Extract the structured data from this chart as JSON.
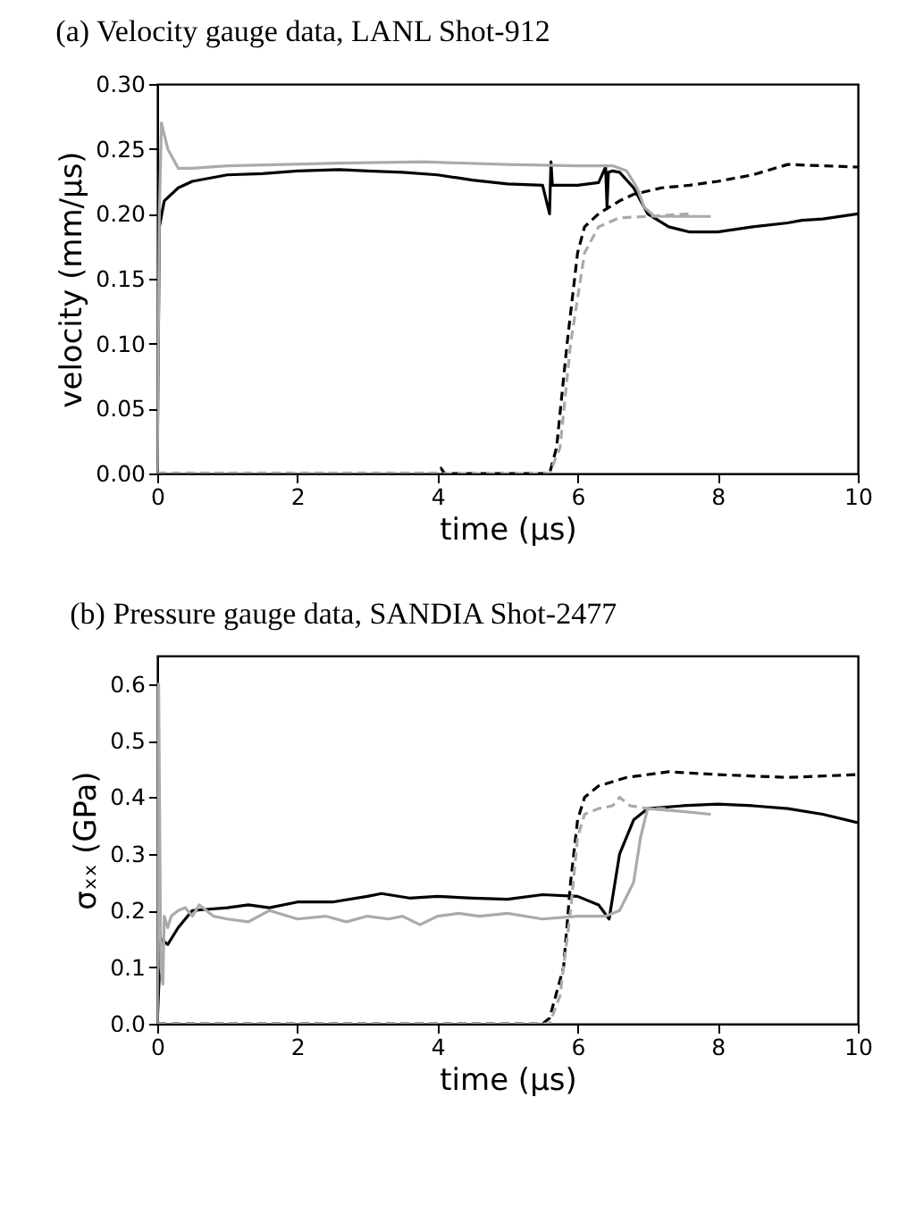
{
  "chart_data": [
    {
      "type": "line",
      "title": "(a) Velocity gauge data, LANL Shot-912",
      "xlabel": "time (μs)",
      "ylabel": "velocity (mm/μs)",
      "xlim": [
        0,
        10
      ],
      "ylim": [
        0,
        0.3
      ],
      "xticks": [
        0,
        2,
        4,
        6,
        8,
        10
      ],
      "yticks": [
        {
          "value": 0,
          "label": "0.00"
        },
        {
          "value": 0.05,
          "label": "0.05"
        },
        {
          "value": 0.1,
          "label": "0.10"
        },
        {
          "value": 0.15,
          "label": "0.15"
        },
        {
          "value": 0.2,
          "label": "0.20"
        },
        {
          "value": 0.25,
          "label": "0.25"
        },
        {
          "value": 0.3,
          "label": "0.30"
        }
      ],
      "grid": false,
      "legend": false,
      "series": [
        {
          "color": "#000000",
          "line_style": "solid",
          "x": [
            0,
            0.03,
            0.1,
            0.3,
            0.5,
            1,
            1.5,
            2,
            2.6,
            3,
            3.5,
            4,
            4.5,
            5,
            5.5,
            5.6,
            5.62,
            5.64,
            6,
            6.3,
            6.4,
            6.42,
            6.44,
            6.5,
            6.6,
            6.8,
            7,
            7.3,
            7.6,
            8,
            8.5,
            9,
            9.2,
            9.5,
            10
          ],
          "values": [
            0,
            0.19,
            0.21,
            0.22,
            0.225,
            0.23,
            0.231,
            0.233,
            0.234,
            0.233,
            0.232,
            0.23,
            0.226,
            0.223,
            0.222,
            0.2,
            0.24,
            0.222,
            0.222,
            0.224,
            0.236,
            0.205,
            0.232,
            0.233,
            0.232,
            0.22,
            0.2,
            0.19,
            0.186,
            0.186,
            0.19,
            0.193,
            0.195,
            0.196,
            0.2
          ]
        },
        {
          "color": "#aaaaaa",
          "line_style": "solid",
          "x": [
            0,
            0.03,
            0.06,
            0.15,
            0.3,
            0.5,
            1,
            1.8,
            2.6,
            3.8,
            5,
            6,
            6.5,
            6.7,
            6.85,
            6.95,
            7.1,
            7.5,
            7.9
          ],
          "values": [
            0,
            0.2,
            0.27,
            0.25,
            0.235,
            0.235,
            0.237,
            0.238,
            0.239,
            0.24,
            0.238,
            0.237,
            0.237,
            0.233,
            0.22,
            0.205,
            0.198,
            0.198,
            0.198
          ]
        },
        {
          "color": "#000000",
          "line_style": "dashed",
          "x": [
            0,
            4,
            4.05,
            4.1,
            5.6,
            5.7,
            5.85,
            6,
            6.1,
            6.3,
            6.6,
            6.8,
            7.2,
            7.6,
            8,
            8.5,
            9,
            9.5,
            10
          ],
          "values": [
            0,
            0,
            0.004,
            0,
            0,
            0.02,
            0.1,
            0.17,
            0.19,
            0.2,
            0.21,
            0.215,
            0.22,
            0.222,
            0.225,
            0.23,
            0.238,
            0.237,
            0.236
          ]
        },
        {
          "color": "#aaaaaa",
          "line_style": "dashed",
          "x": [
            0,
            5.6,
            5.75,
            5.9,
            6.1,
            6.3,
            6.6,
            7,
            7.6
          ],
          "values": [
            0,
            0,
            0.02,
            0.1,
            0.17,
            0.19,
            0.197,
            0.198,
            0.2
          ]
        }
      ]
    },
    {
      "type": "line",
      "title": "(b) Pressure gauge data, SANDIA Shot-2477",
      "xlabel": "time (μs)",
      "ylabel": "σₓₓ (GPa)",
      "xlim": [
        0,
        10
      ],
      "ylim": [
        0,
        0.65
      ],
      "xticks": [
        0,
        2,
        4,
        6,
        8,
        10
      ],
      "yticks": [
        {
          "value": 0,
          "label": "0.0"
        },
        0.1,
        0.2,
        0.3,
        0.4,
        0.5,
        0.6
      ],
      "grid": false,
      "legend": false,
      "series": [
        {
          "color": "#000000",
          "line_style": "solid",
          "x": [
            0,
            0.05,
            0.15,
            0.3,
            0.5,
            1,
            1.3,
            1.6,
            2,
            2.5,
            3,
            3.2,
            3.6,
            4,
            4.5,
            5,
            5.5,
            6,
            6.3,
            6.45,
            6.6,
            6.8,
            7,
            7.5,
            8,
            8.5,
            9,
            9.5,
            10
          ],
          "values": [
            0,
            0.15,
            0.14,
            0.17,
            0.2,
            0.205,
            0.21,
            0.205,
            0.215,
            0.215,
            0.225,
            0.23,
            0.222,
            0.225,
            0.222,
            0.22,
            0.228,
            0.225,
            0.21,
            0.185,
            0.3,
            0.36,
            0.38,
            0.385,
            0.388,
            0.385,
            0.38,
            0.37,
            0.355
          ]
        },
        {
          "color": "#aaaaaa",
          "line_style": "solid",
          "x": [
            0,
            0.02,
            0.05,
            0.08,
            0.1,
            0.15,
            0.2,
            0.3,
            0.4,
            0.5,
            0.6,
            0.8,
            1,
            1.3,
            1.6,
            2,
            2.4,
            2.7,
            3,
            3.3,
            3.5,
            3.75,
            4,
            4.3,
            4.6,
            5,
            5.5,
            6,
            6.4,
            6.6,
            6.8,
            6.9,
            7,
            7.5,
            7.9
          ],
          "values": [
            0,
            0.6,
            0.1,
            0.07,
            0.19,
            0.17,
            0.19,
            0.2,
            0.205,
            0.19,
            0.21,
            0.19,
            0.185,
            0.18,
            0.2,
            0.185,
            0.19,
            0.18,
            0.19,
            0.185,
            0.19,
            0.175,
            0.19,
            0.195,
            0.19,
            0.195,
            0.185,
            0.19,
            0.19,
            0.2,
            0.25,
            0.33,
            0.38,
            0.375,
            0.37
          ]
        },
        {
          "color": "#000000",
          "line_style": "dashed",
          "x": [
            0,
            5.5,
            5.6,
            5.8,
            5.9,
            6,
            6.1,
            6.3,
            6.7,
            7.3,
            8,
            9,
            10
          ],
          "values": [
            0,
            0,
            0.01,
            0.1,
            0.25,
            0.36,
            0.4,
            0.42,
            0.435,
            0.445,
            0.44,
            0.435,
            0.44
          ]
        },
        {
          "color": "#aaaaaa",
          "line_style": "dashed",
          "x": [
            0,
            5.6,
            5.75,
            5.9,
            6,
            6.1,
            6.3,
            6.5,
            6.6,
            6.75,
            7,
            7.3
          ],
          "values": [
            0,
            0,
            0.05,
            0.2,
            0.33,
            0.37,
            0.38,
            0.385,
            0.4,
            0.385,
            0.38,
            0.38
          ]
        }
      ]
    }
  ]
}
